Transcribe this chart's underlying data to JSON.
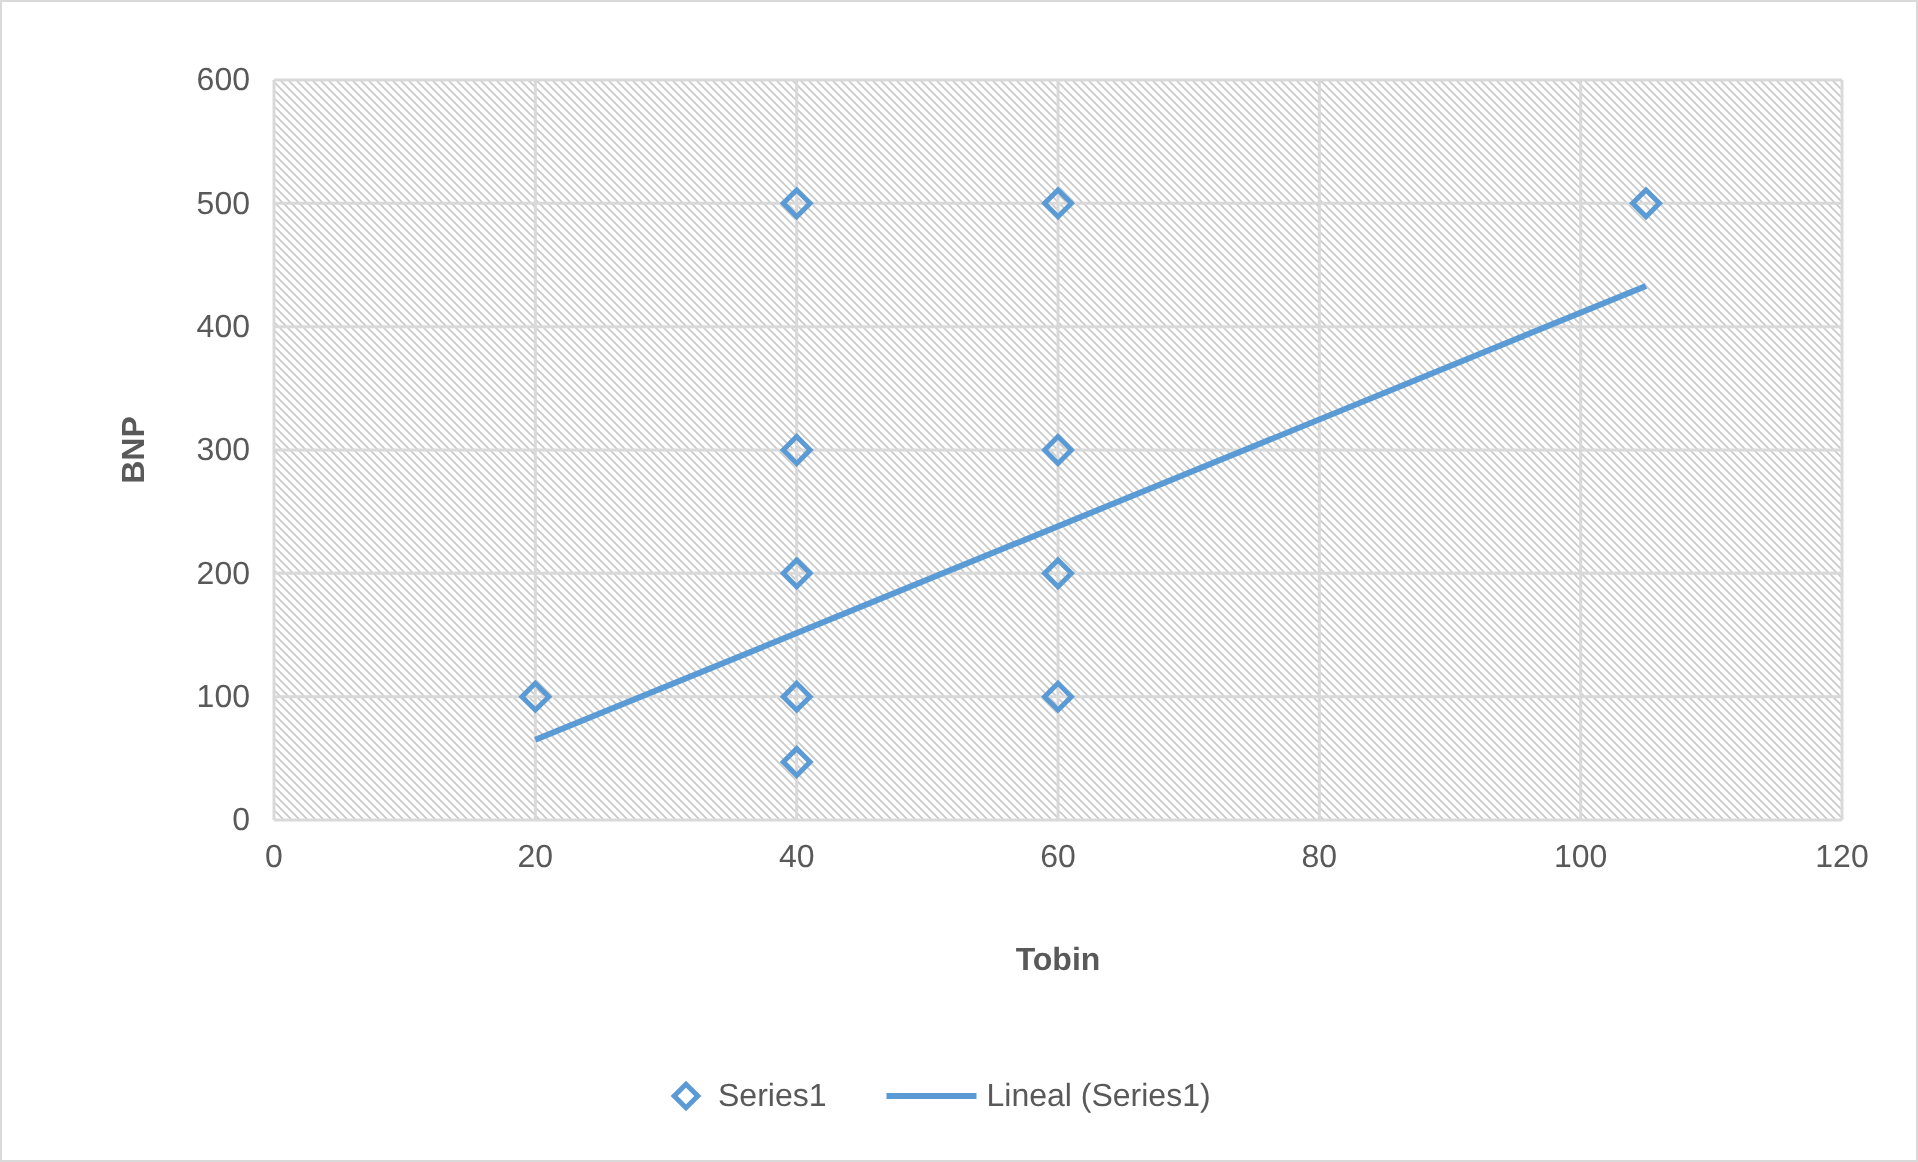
{
  "chart_data": {
    "type": "scatter",
    "xlabel": "Tobin",
    "ylabel": "BNP",
    "xlim": [
      0,
      120
    ],
    "xticks": [
      0,
      20,
      40,
      60,
      80,
      100,
      120
    ],
    "ylim": [
      0,
      600
    ],
    "yticks": [
      0,
      100,
      200,
      300,
      400,
      500,
      600
    ],
    "grid": true,
    "legend": "bottom",
    "series": [
      {
        "name": "Series1",
        "marker": "diamond",
        "color": "#5b9bd5",
        "x": [
          20,
          40,
          40,
          40,
          40,
          40,
          60,
          60,
          60,
          60,
          105
        ],
        "values": [
          100,
          500,
          300,
          200,
          100,
          47,
          500,
          300,
          200,
          100,
          500
        ]
      },
      {
        "name": "Lineal (Series1)",
        "type": "line",
        "marker": "none",
        "color": "#5b9bd5",
        "line_style": "solid",
        "x": [
          20,
          105
        ],
        "values": [
          65,
          433
        ]
      }
    ]
  }
}
